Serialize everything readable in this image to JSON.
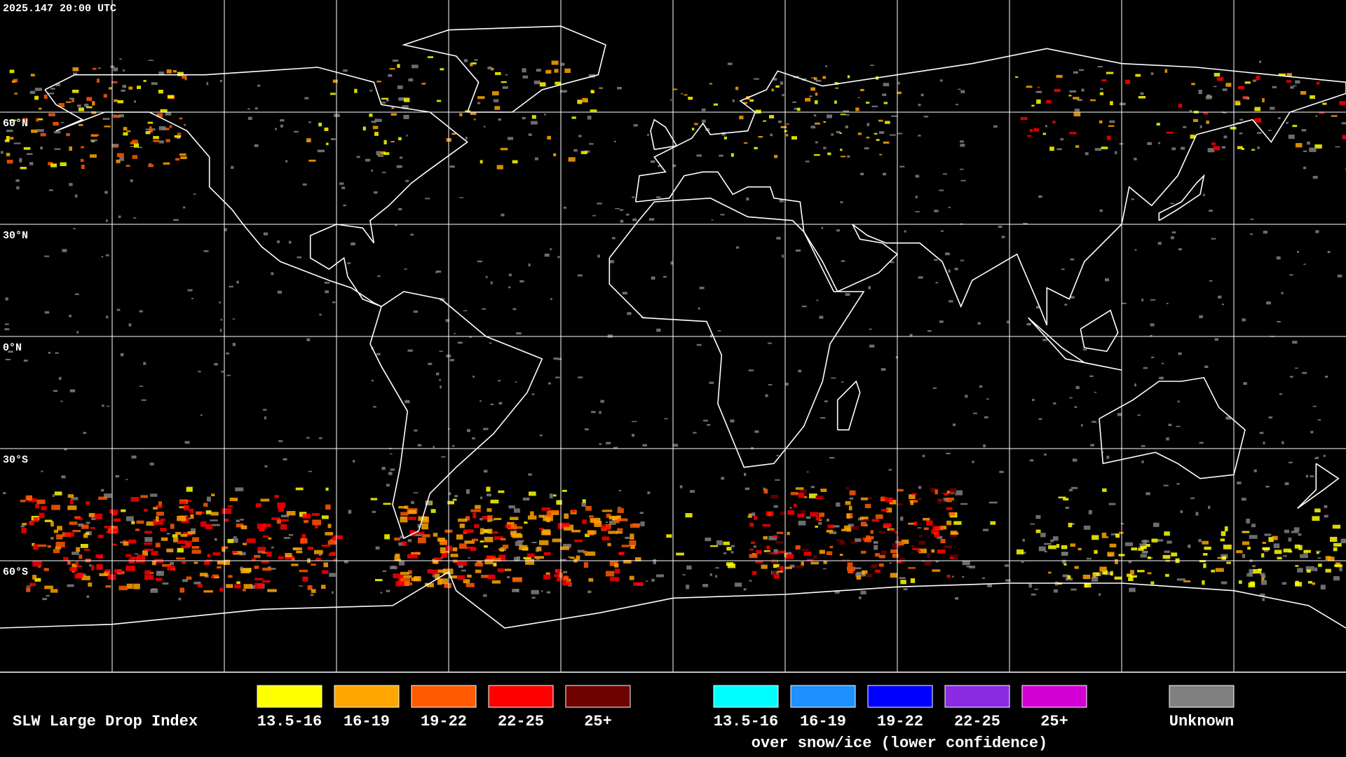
{
  "header": {
    "timestamp": "2025.147 20:00 UTC"
  },
  "map": {
    "lat_labels": [
      "60°N",
      "30°N",
      "0°N",
      "30°S",
      "60°S"
    ]
  },
  "legend": {
    "title": "SLW Large Drop Index",
    "liquid": [
      {
        "label": "13.5-16",
        "color": "#ffff00"
      },
      {
        "label": "16-19",
        "color": "#ffa500"
      },
      {
        "label": "19-22",
        "color": "#ff5a00"
      },
      {
        "label": "22-25",
        "color": "#ff0000"
      },
      {
        "label": "25+",
        "color": "#6e0000"
      }
    ],
    "snow_ice": [
      {
        "label": "13.5-16",
        "color": "#00ffff"
      },
      {
        "label": "16-19",
        "color": "#1e90ff"
      },
      {
        "label": "19-22",
        "color": "#0000ff"
      },
      {
        "label": "22-25",
        "color": "#8a2be2"
      },
      {
        "label": "25+",
        "color": "#d200d2"
      }
    ],
    "snow_ice_caption": "over snow/ice (lower confidence)",
    "unknown": {
      "label": "Unknown",
      "color": "#808080"
    }
  }
}
